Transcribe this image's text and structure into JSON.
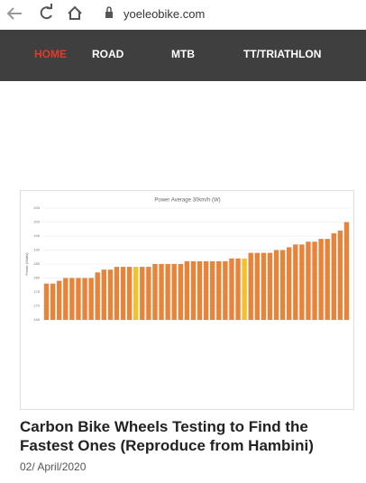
{
  "browser": {
    "url": "yoeleobike.com"
  },
  "nav": [
    "HOME",
    "ROAD",
    "MTB",
    "TT/TRIATHLON"
  ],
  "article": {
    "title": "Carbon Bike Wheels Testing to Find the Fastest Ones (Reproduce from Hambini)",
    "date": "02/ April/2020"
  },
  "chart_data": {
    "type": "bar",
    "title": "Power Average 30km/h (W)",
    "y_label": "Power (Watts)",
    "values": [
      178,
      178,
      179,
      180,
      180,
      180,
      180,
      180,
      182,
      183,
      183,
      184,
      184,
      184,
      184,
      184,
      184,
      185,
      185,
      185,
      185,
      185,
      186,
      186,
      186,
      186,
      186,
      186,
      186,
      187,
      187,
      187,
      189,
      189,
      189,
      189,
      190,
      190,
      191,
      192,
      192,
      193,
      193,
      194,
      194,
      196,
      197,
      200
    ],
    "colors": [
      "#e8833a",
      "#e8833a",
      "#e8833a",
      "#e8833a",
      "#e8833a",
      "#e8833a",
      "#e8833a",
      "#e8833a",
      "#e8833a",
      "#e8833a",
      "#e8833a",
      "#e8833a",
      "#e8833a",
      "#e8833a",
      "#f2c12e",
      "#e8833a",
      "#e8833a",
      "#e8833a",
      "#e8833a",
      "#e8833a",
      "#e8833a",
      "#e8833a",
      "#e8833a",
      "#e8833a",
      "#e8833a",
      "#e8833a",
      "#e8833a",
      "#e8833a",
      "#e8833a",
      "#e8833a",
      "#e8833a",
      "#f2c12e",
      "#e8833a",
      "#e8833a",
      "#e8833a",
      "#e8833a",
      "#e8833a",
      "#e8833a",
      "#e8833a",
      "#e8833a",
      "#e8833a",
      "#e8833a",
      "#e8833a",
      "#e8833a",
      "#e8833a",
      "#e8833a",
      "#e8833a",
      "#e8833a"
    ],
    "ylim": [
      165,
      205
    ],
    "yticks": [
      165,
      170,
      175,
      180,
      185,
      190,
      195,
      200,
      205
    ],
    "grid": true
  }
}
